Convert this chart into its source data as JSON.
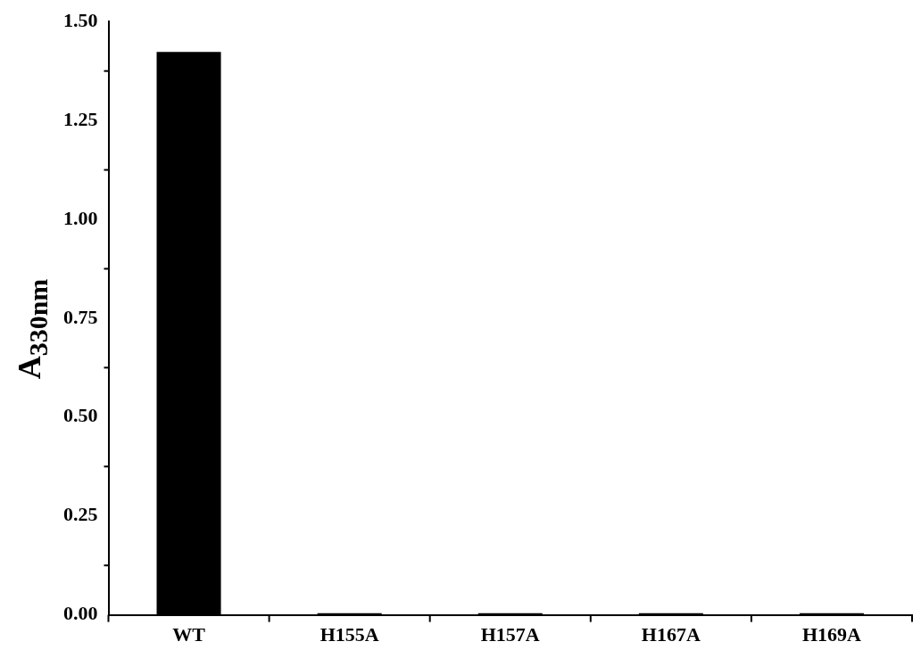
{
  "chart_data": {
    "type": "bar",
    "ylabel": "A$_{330nm}$",
    "categories": [
      "WT",
      "H155A",
      "H157A",
      "H167A",
      "H169A"
    ],
    "values": [
      1.423,
      0.004,
      0.004,
      0.004,
      0.004
    ],
    "color": "#000000",
    "ylim": [
      0,
      1.5
    ],
    "yticks": [
      {
        "value": 0,
        "label": "0.00"
      },
      {
        "value": 0.25,
        "label": "0.25"
      },
      {
        "value": 0.5,
        "label": "0.50"
      },
      {
        "value": 0.75,
        "label": "0.75"
      },
      {
        "value": 1,
        "label": "1.00"
      },
      {
        "value": 1.25,
        "label": "1.25"
      },
      {
        "value": 1.5,
        "label": "1.50"
      }
    ],
    "grid": false,
    "legend": false
  }
}
